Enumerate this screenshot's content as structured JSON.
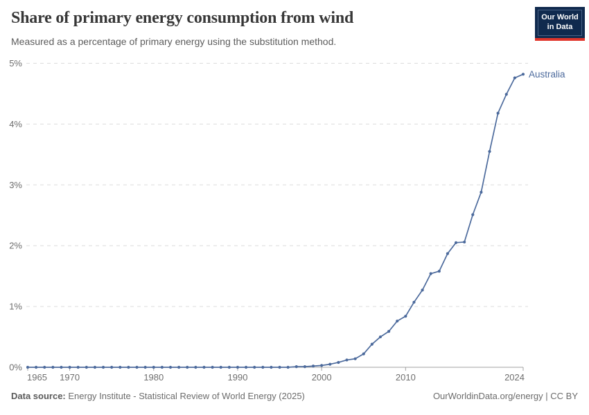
{
  "header": {
    "title": "Share of primary energy consumption from wind",
    "subtitle": "Measured as a percentage of primary energy using the substitution method."
  },
  "logo": {
    "line1": "Our World",
    "line2": "in Data",
    "bg_color": "#102a4e",
    "border_color": "#4a6488",
    "bar_color": "#e0352b"
  },
  "chart_data": {
    "type": "line",
    "title": "Share of primary energy consumption from wind",
    "subtitle": "Measured as a percentage of primary energy using the substitution method.",
    "xlim": [
      1965,
      2024
    ],
    "ylim": [
      0,
      5
    ],
    "x_ticks": [
      1965,
      1970,
      1980,
      1990,
      2000,
      2010,
      2024
    ],
    "y_ticks": [
      0,
      1,
      2,
      3,
      4,
      5
    ],
    "y_tick_suffix": "%",
    "grid": "horizontal-dashed",
    "legend_position": "end-of-line-label",
    "grid_color": "#dcdcdc",
    "axis_color": "#a1a1a1",
    "tick_label_color": "#6e6e6e",
    "series": [
      {
        "name": "Australia",
        "color": "#4c6a9c",
        "x": [
          1965,
          1966,
          1967,
          1968,
          1969,
          1970,
          1971,
          1972,
          1973,
          1974,
          1975,
          1976,
          1977,
          1978,
          1979,
          1980,
          1981,
          1982,
          1983,
          1984,
          1985,
          1986,
          1987,
          1988,
          1989,
          1990,
          1991,
          1992,
          1993,
          1994,
          1995,
          1996,
          1997,
          1998,
          1999,
          2000,
          2001,
          2002,
          2003,
          2004,
          2005,
          2006,
          2007,
          2008,
          2009,
          2010,
          2011,
          2012,
          2013,
          2014,
          2015,
          2016,
          2017,
          2018,
          2019,
          2020,
          2021,
          2022,
          2023,
          2024
        ],
        "values": [
          0,
          0,
          0,
          0,
          0,
          0,
          0,
          0,
          0,
          0,
          0,
          0,
          0,
          0,
          0,
          0,
          0,
          0,
          0,
          0,
          0,
          0,
          0,
          0,
          0,
          0,
          0,
          0,
          0,
          0,
          0,
          0,
          0.01,
          0.01,
          0.02,
          0.03,
          0.05,
          0.08,
          0.12,
          0.14,
          0.22,
          0.38,
          0.5,
          0.59,
          0.76,
          0.84,
          1.07,
          1.27,
          1.54,
          1.58,
          1.87,
          2.05,
          2.06,
          2.51,
          2.88,
          3.55,
          4.18,
          4.49,
          4.76,
          4.82
        ]
      }
    ]
  },
  "footer": {
    "source_label": "Data source:",
    "source_text": " Energy Institute - Statistical Review of World Energy (2025)",
    "license_text": "OurWorldinData.org/energy | CC BY"
  }
}
